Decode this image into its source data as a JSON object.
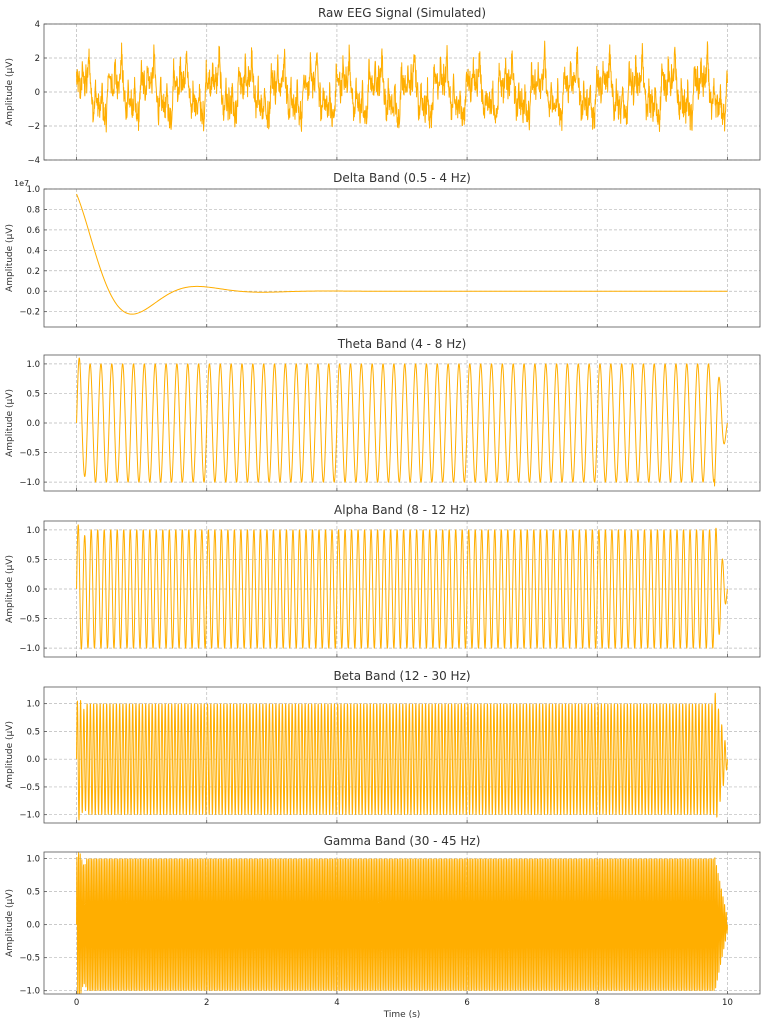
{
  "figure": {
    "line_color": "#ffae00",
    "shared_xlabel": "Time (s)"
  },
  "chart_data": [
    {
      "type": "line",
      "title": "Raw EEG Signal (Simulated)",
      "ylabel": "Amplitude (µV)",
      "xlim": [
        -0.5,
        10.5
      ],
      "ylim": [
        -4,
        4
      ],
      "x_ticks": [
        0,
        2,
        4,
        6,
        8,
        10
      ],
      "y_ticks": [
        -4,
        -2,
        0,
        2,
        4
      ],
      "y_tick_labels": [
        "−4",
        "−2",
        "0",
        "2",
        "4"
      ],
      "y_offset_label": "",
      "grid": true,
      "series": [
        {
          "x_range": [
            0,
            10
          ],
          "model": "sum of sinusoids + noise",
          "components": [
            {
              "freq_hz": 2,
              "amplitude": 1.0
            },
            {
              "freq_hz": 6,
              "amplitude": 0.5
            },
            {
              "freq_hz": 10,
              "amplitude": 0.6
            },
            {
              "freq_hz": 20,
              "amplitude": 0.4
            },
            {
              "freq_hz": 40,
              "amplitude": 0.3
            }
          ],
          "noise_amplitude": 0.6,
          "y_range": [
            -3.8,
            3.8
          ]
        }
      ]
    },
    {
      "type": "line",
      "title": "Delta Band (0.5 - 4 Hz)",
      "ylabel": "Amplitude (µV)",
      "xlim": [
        -0.5,
        10.5
      ],
      "ylim": [
        -0.35,
        1.0
      ],
      "x_ticks": [
        0,
        2,
        4,
        6,
        8,
        10
      ],
      "y_ticks": [
        -0.2,
        0.0,
        0.2,
        0.4,
        0.6,
        0.8,
        1.0
      ],
      "y_tick_labels": [
        "−0.2",
        "0.0",
        "0.2",
        "0.4",
        "0.6",
        "0.8",
        "1.0"
      ],
      "y_offset_label": "1e7",
      "grid": true,
      "series": [
        {
          "x_range": [
            0,
            10
          ],
          "model": "damped oscillation",
          "start_value": 0.95,
          "min_point": [
            0.8,
            -0.29
          ],
          "second_peak": [
            2.0,
            0.09
          ],
          "settles_to": 0.0
        }
      ]
    },
    {
      "type": "line",
      "title": "Theta Band (4 - 8 Hz)",
      "ylabel": "Amplitude (µV)",
      "xlim": [
        -0.5,
        10.5
      ],
      "ylim": [
        -1.15,
        1.15
      ],
      "x_ticks": [
        0,
        2,
        4,
        6,
        8,
        10
      ],
      "y_ticks": [
        -1.0,
        -0.5,
        0.0,
        0.5,
        1.0
      ],
      "y_tick_labels": [
        "−1.0",
        "−0.5",
        "0.0",
        "0.5",
        "1.0"
      ],
      "y_offset_label": "",
      "grid": true,
      "series": [
        {
          "x_range": [
            0,
            10
          ],
          "model": "sinusoid",
          "freq_hz": 6,
          "amplitude": 1.0,
          "y_extremes": [
            -1.1,
            1.1
          ]
        }
      ]
    },
    {
      "type": "line",
      "title": "Alpha Band (8 - 12 Hz)",
      "ylabel": "Amplitude (µV)",
      "xlim": [
        -0.5,
        10.5
      ],
      "ylim": [
        -1.15,
        1.15
      ],
      "x_ticks": [
        0,
        2,
        4,
        6,
        8,
        10
      ],
      "y_ticks": [
        -1.0,
        -0.5,
        0.0,
        0.5,
        1.0
      ],
      "y_tick_labels": [
        "−1.0",
        "−0.5",
        "0.0",
        "0.5",
        "1.0"
      ],
      "y_offset_label": "",
      "grid": true,
      "series": [
        {
          "x_range": [
            0,
            10
          ],
          "model": "sinusoid",
          "freq_hz": 10,
          "amplitude": 1.0,
          "y_extremes": [
            -1.1,
            1.1
          ]
        }
      ]
    },
    {
      "type": "line",
      "title": "Beta Band (12 - 30 Hz)",
      "ylabel": "Amplitude (µV)",
      "xlim": [
        -0.5,
        10.5
      ],
      "ylim": [
        -1.15,
        1.3
      ],
      "x_ticks": [
        0,
        2,
        4,
        6,
        8,
        10
      ],
      "y_ticks": [
        -1.0,
        -0.5,
        0.0,
        0.5,
        1.0
      ],
      "y_tick_labels": [
        "−1.0",
        "−0.5",
        "0.0",
        "0.5",
        "1.0"
      ],
      "y_offset_label": "",
      "grid": true,
      "series": [
        {
          "x_range": [
            0,
            10
          ],
          "model": "sinusoid",
          "freq_hz": 20,
          "amplitude": 1.0,
          "y_extremes": [
            -1.1,
            1.2
          ]
        }
      ]
    },
    {
      "type": "line",
      "title": "Gamma Band (30 - 45 Hz)",
      "ylabel": "Amplitude (µV)",
      "xlabel": "Time (s)",
      "xlim": [
        -0.5,
        10.5
      ],
      "ylim": [
        -1.05,
        1.1
      ],
      "x_ticks": [
        0,
        2,
        4,
        6,
        8,
        10
      ],
      "x_tick_labels": [
        "0",
        "2",
        "4",
        "6",
        "8",
        "10"
      ],
      "y_ticks": [
        -1.0,
        -0.5,
        0.0,
        0.5,
        1.0
      ],
      "y_tick_labels": [
        "−1.0",
        "−0.5",
        "0.0",
        "0.5",
        "1.0"
      ],
      "y_offset_label": "",
      "grid": true,
      "series": [
        {
          "x_range": [
            0,
            10
          ],
          "model": "sinusoid",
          "freq_hz": 40,
          "amplitude": 1.0,
          "y_extremes": [
            -1.0,
            1.0
          ]
        }
      ]
    }
  ]
}
